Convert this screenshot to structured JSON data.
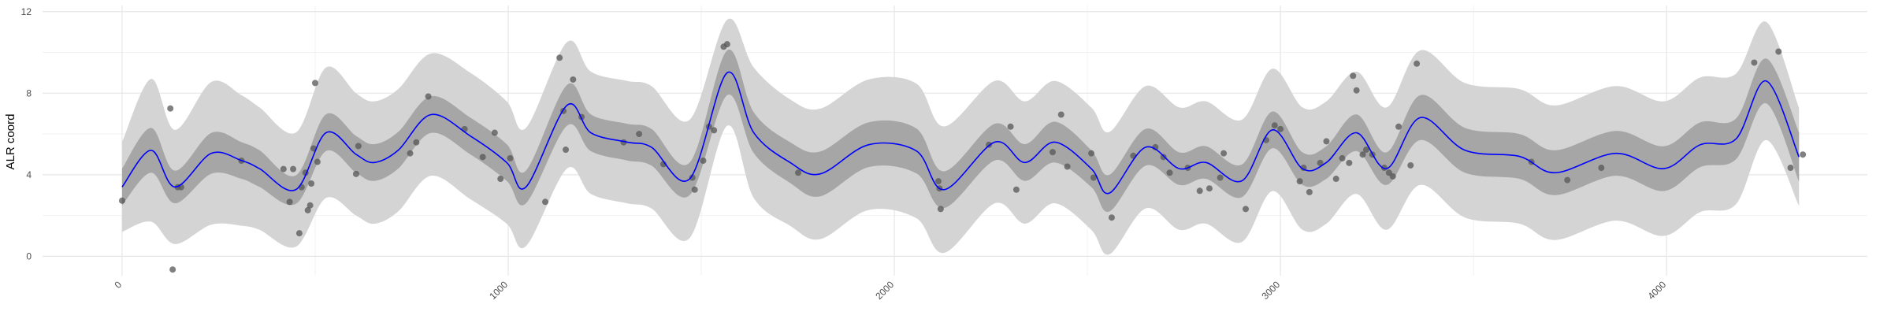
{
  "chart_data": {
    "type": "scatter",
    "y_label": "ALR coord",
    "xlim": [
      -206,
      4520
    ],
    "ylim": [
      -0.95,
      12.3
    ],
    "xticks": [
      0,
      1000,
      2000,
      3000,
      4000
    ],
    "yticks": [
      0,
      4,
      8,
      12
    ],
    "grid": true,
    "minor_grid": true,
    "points": {
      "color": "#555555",
      "x": [
        0,
        125,
        131,
        144,
        153,
        309,
        418,
        434,
        443,
        459,
        465,
        475,
        481,
        487,
        490,
        496,
        500,
        506,
        606,
        612,
        746,
        762,
        793,
        887,
        934,
        965,
        980,
        1005,
        1096,
        1133,
        1143,
        1149,
        1168,
        1190,
        1299,
        1339,
        1402,
        1477,
        1483,
        1505,
        1520,
        1533,
        1558,
        1567,
        1751,
        2114,
        2117,
        2120,
        2245,
        2301,
        2316,
        2410,
        2432,
        2448,
        2510,
        2516,
        2563,
        2619,
        2676,
        2697,
        2713,
        2760,
        2791,
        2816,
        2853,
        2844,
        2910,
        2963,
        2985,
        3000,
        3050,
        3060,
        3075,
        3103,
        3119,
        3144,
        3160,
        3178,
        3188,
        3197,
        3213,
        3222,
        3238,
        3269,
        3281,
        3291,
        3306,
        3337,
        3353,
        3650,
        3743,
        3831,
        4227,
        4290,
        4321,
        4353
      ],
      "y": [
        2.73,
        7.25,
        -0.65,
        3.39,
        3.39,
        4.69,
        4.28,
        2.67,
        4.28,
        1.13,
        3.39,
        4.1,
        2.26,
        2.5,
        3.57,
        5.29,
        8.5,
        4.63,
        4.04,
        5.41,
        5.05,
        5.59,
        7.84,
        6.24,
        4.87,
        6.06,
        3.8,
        4.81,
        2.67,
        9.74,
        7.13,
        5.23,
        8.67,
        6.83,
        5.59,
        6.0,
        4.52,
        3.86,
        3.27,
        4.69,
        6.36,
        6.18,
        10.28,
        10.4,
        4.1,
        3.68,
        3.33,
        2.32,
        5.47,
        6.36,
        3.27,
        5.11,
        6.95,
        4.4,
        5.05,
        3.86,
        1.9,
        4.93,
        5.35,
        4.87,
        4.1,
        4.34,
        3.21,
        3.33,
        5.05,
        3.86,
        2.32,
        5.7,
        6.42,
        6.24,
        3.68,
        4.34,
        3.15,
        4.58,
        5.64,
        3.8,
        4.81,
        4.58,
        8.85,
        8.14,
        4.99,
        5.23,
        4.99,
        4.34,
        4.1,
        3.92,
        6.36,
        4.46,
        9.45,
        4.63,
        3.74,
        4.34,
        9.5,
        10.04,
        4.34,
        4.99
      ]
    },
    "line": {
      "color": "#0000ff",
      "band_inner_color": "#a6a6a6",
      "band_outer_color": "#d4d4d4",
      "x": [
        0,
        75,
        137,
        231,
        309,
        356,
        450,
        528,
        606,
        653,
        715,
        800,
        902,
        996,
        1046,
        1152,
        1214,
        1308,
        1371,
        1470,
        1567,
        1636,
        1730,
        1808,
        1933,
        2057,
        2129,
        2260,
        2338,
        2416,
        2510,
        2557,
        2651,
        2738,
        2807,
        2900,
        2979,
        3057,
        3119,
        3197,
        3275,
        3362,
        3478,
        3619,
        3712,
        3868,
        3993,
        4087,
        4180,
        4258,
        4343
      ],
      "values": [
        3.4,
        5.2,
        3.4,
        5.05,
        4.7,
        4.3,
        3.27,
        6.06,
        5.0,
        4.6,
        5.2,
        6.95,
        5.9,
        4.6,
        3.4,
        7.4,
        6.06,
        5.6,
        5.35,
        3.8,
        9.0,
        6.06,
        4.6,
        4.04,
        5.47,
        5.17,
        3.27,
        5.6,
        4.6,
        5.6,
        4.3,
        3.1,
        5.35,
        4.3,
        4.6,
        3.7,
        6.2,
        4.3,
        4.6,
        6.06,
        4.3,
        6.8,
        5.2,
        4.9,
        4.1,
        5.05,
        4.3,
        5.47,
        5.76,
        8.6,
        4.87
      ],
      "band_inner": [
        0.9,
        1.1,
        0.8,
        1.0,
        0.9,
        0.9,
        0.7,
        0.9,
        0.9,
        0.9,
        0.9,
        0.9,
        0.9,
        0.9,
        0.8,
        1.0,
        0.9,
        0.9,
        0.9,
        0.8,
        1.1,
        1.0,
        1.0,
        1.1,
        1.1,
        1.1,
        0.9,
        0.9,
        0.9,
        1.0,
        0.9,
        0.9,
        0.9,
        0.8,
        0.8,
        0.8,
        0.9,
        0.8,
        0.8,
        0.9,
        0.8,
        1.1,
        1.1,
        1.1,
        1.1,
        1.1,
        1.1,
        1.1,
        1.0,
        1.1,
        1.2
      ],
      "band_outer": [
        2.2,
        3.5,
        2.8,
        3.5,
        3.2,
        3.0,
        2.8,
        3.2,
        3.0,
        3.0,
        3.0,
        3.0,
        3.1,
        3.0,
        2.9,
        3.1,
        3.0,
        3.0,
        3.0,
        2.9,
        2.6,
        3.2,
        3.1,
        3.2,
        3.2,
        3.3,
        3.1,
        3.0,
        3.0,
        3.0,
        3.0,
        3.0,
        3.0,
        3.0,
        3.0,
        3.0,
        3.0,
        3.0,
        3.0,
        3.0,
        3.0,
        3.3,
        3.3,
        3.3,
        3.3,
        3.3,
        3.3,
        3.3,
        3.2,
        2.9,
        2.4
      ]
    }
  }
}
